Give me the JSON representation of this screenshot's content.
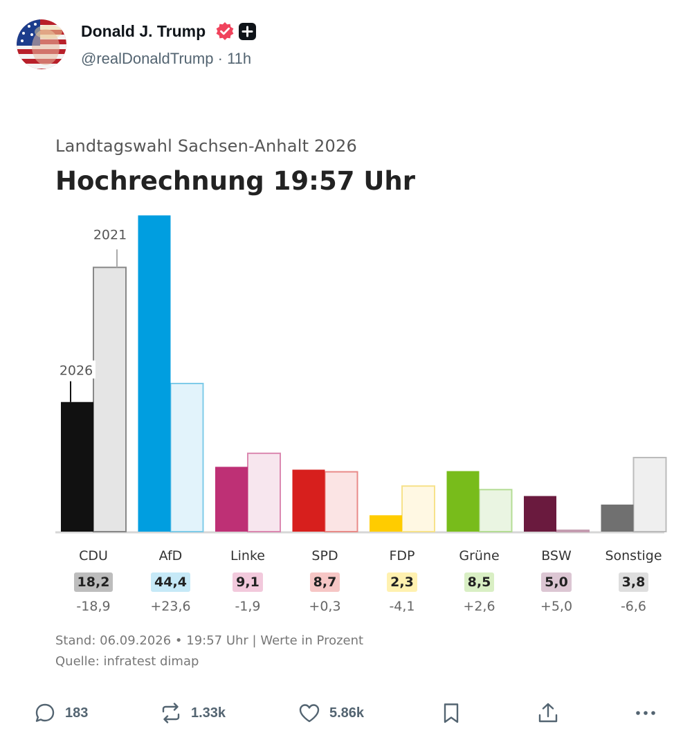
{
  "post": {
    "author_name": "Donald J. Trump",
    "handle": "@realDonaldTrump",
    "time": "11h"
  },
  "chart_data": {
    "type": "bar",
    "title": "Hochrechnung 19:57 Uhr",
    "subtitle": "Landtagswahl Sachsen-Anhalt 2026",
    "categories": [
      "CDU",
      "AfD",
      "Linke",
      "SPD",
      "FDP",
      "Grüne",
      "BSW",
      "Sonstige"
    ],
    "series": [
      {
        "name": "2026",
        "values": [
          18.2,
          44.4,
          9.1,
          8.7,
          2.3,
          8.5,
          5.0,
          3.8
        ]
      },
      {
        "name": "2021",
        "values": [
          37.1,
          20.8,
          11.0,
          8.4,
          6.4,
          5.9,
          0.0,
          10.4
        ]
      }
    ],
    "value_labels": [
      "18,2",
      "44,4",
      "9,1",
      "8,7",
      "2,3",
      "8,5",
      "5,0",
      "3,8"
    ],
    "diff_labels": [
      "-18,9",
      "+23,6",
      "-1,9",
      "+0,3",
      "-4,1",
      "+2,6",
      "+5,0",
      "-6,6"
    ],
    "colors": [
      "#111111",
      "#009ee0",
      "#be3075",
      "#d71f1d",
      "#ffcc00",
      "#78bc1b",
      "#6a1a3e",
      "#707070"
    ],
    "light_colors": [
      "#e5e5e5",
      "#e2f3fb",
      "#f7e6ee",
      "#fbe4e4",
      "#fff8e3",
      "#eaf5e2",
      "#f0e8ec",
      "#efefef"
    ],
    "outline_colors": [
      "#888888",
      "#7ecbe8",
      "#db88b0",
      "#e88a88",
      "#f6e28a",
      "#b4dc94",
      "#c49cb0",
      "#bbbbbb"
    ],
    "badge_colors": [
      "#bdbdbd",
      "#c6e9f7",
      "#f2c9dc",
      "#f6c6c5",
      "#fff1b0",
      "#d9efc4",
      "#dcc6d3",
      "#dedede"
    ],
    "ylim": [
      0,
      45
    ],
    "grid": false,
    "legend": "annotations on first group",
    "annotations": {
      "current": "2026",
      "previous": "2021"
    },
    "footer": {
      "stand": "Stand: 06.09.2026 • 19:57 Uhr | Werte in Prozent",
      "source": "Quelle: infratest dimap"
    }
  },
  "actions": {
    "replies": "183",
    "reposts": "1.33k",
    "likes": "5.86k"
  },
  "icons": [
    "verified-icon",
    "subscriber-plus-icon",
    "reply-icon",
    "repost-icon",
    "like-icon",
    "bookmark-icon",
    "share-icon",
    "more-icon"
  ]
}
